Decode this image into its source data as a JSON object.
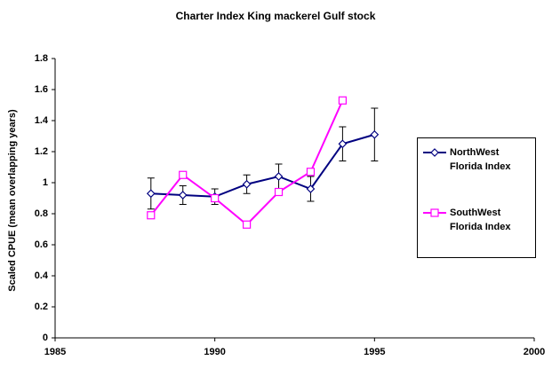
{
  "chart_data": {
    "type": "line",
    "title": "Charter Index  King mackerel Gulf stock",
    "y_label": "Scaled CPUE (mean overlapping years)",
    "xlim": [
      1985,
      2000
    ],
    "xticks": [
      1985,
      1990,
      1995,
      2000
    ],
    "ylim": [
      0,
      1.8
    ],
    "yticks": [
      0,
      0.2,
      0.4,
      0.6,
      0.8,
      1,
      1.2,
      1.4,
      1.6,
      1.8
    ],
    "series": [
      {
        "name": "NorthWest Florida Index",
        "color": "#000080",
        "marker": "diamond",
        "x": [
          1988,
          1989,
          1990,
          1991,
          1992,
          1993,
          1994,
          1995
        ],
        "values": [
          0.93,
          0.92,
          0.91,
          0.99,
          1.04,
          0.96,
          1.25,
          1.31
        ],
        "errors": [
          0.1,
          0.06,
          0.05,
          0.06,
          0.08,
          0.08,
          0.11,
          0.17
        ]
      },
      {
        "name": "SouthWest Florida Index",
        "color": "#ff00ff",
        "marker": "square",
        "x": [
          1988,
          1989,
          1990,
          1991,
          1992,
          1993,
          1994
        ],
        "values": [
          0.79,
          1.05,
          0.9,
          0.73,
          0.94,
          1.07,
          1.53
        ]
      }
    ]
  }
}
